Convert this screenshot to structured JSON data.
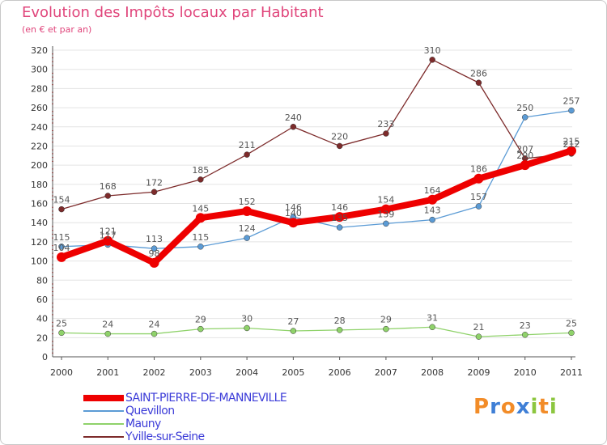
{
  "chart_data": {
    "type": "line",
    "title": "Evolution des Impôts locaux par Habitant",
    "subtitle": "(en € et par an)",
    "x": [
      "2000",
      "2001",
      "2002",
      "2003",
      "2004",
      "2005",
      "2006",
      "2007",
      "2008",
      "2009",
      "2010",
      "2011"
    ],
    "yticks": [
      0,
      20,
      40,
      60,
      80,
      100,
      120,
      140,
      160,
      180,
      200,
      220,
      240,
      260,
      280,
      300,
      320
    ],
    "ylim": [
      0,
      320
    ],
    "series": [
      {
        "name": "SAINT-PIERRE-DE-MANNEVILLE",
        "color": "#ee0000",
        "values": [
          104,
          121,
          98,
          145,
          152,
          140,
          146,
          154,
          164,
          186,
          200,
          215
        ]
      },
      {
        "name": "Quevillon",
        "color": "#5b9bd5",
        "values": [
          115,
          117,
          113,
          115,
          124,
          146,
          135,
          139,
          143,
          157,
          250,
          257
        ]
      },
      {
        "name": "Mauny",
        "color": "#8fd26a",
        "values": [
          25,
          24,
          24,
          29,
          30,
          27,
          28,
          29,
          31,
          21,
          23,
          25
        ]
      },
      {
        "name": "Yville-sur-Seine",
        "color": "#7d2b2b",
        "values": [
          154,
          168,
          172,
          185,
          211,
          240,
          220,
          233,
          310,
          286,
          207,
          212
        ]
      }
    ]
  },
  "logo": {
    "letters": [
      "P",
      "r",
      "o",
      "x",
      "i",
      "t",
      "i"
    ],
    "colors": [
      "#f28c28",
      "#3f7fd6",
      "#f28c28",
      "#3f7fd6",
      "#8cc63f",
      "#f28c28",
      "#8cc63f"
    ]
  }
}
